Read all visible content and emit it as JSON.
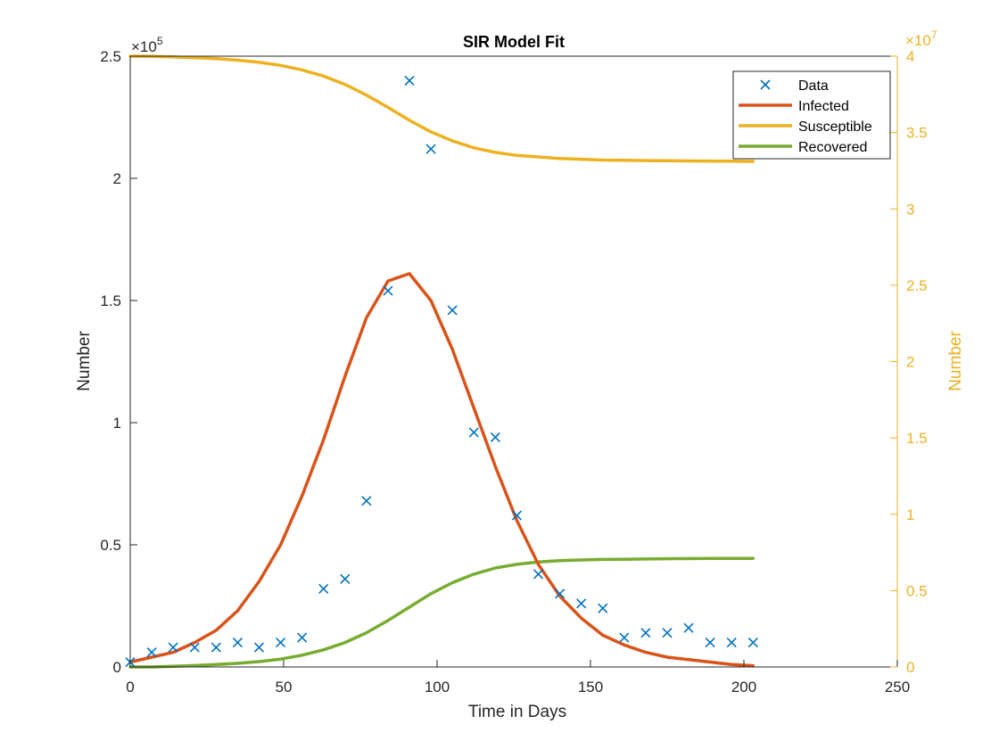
{
  "chart_data": {
    "type": "line",
    "title": "SIR Model Fit",
    "xlabel": "Time in Days",
    "ylabel_left": "Number",
    "ylabel_right": "Number",
    "xlim": [
      0,
      250
    ],
    "ylim_left": [
      0,
      250000
    ],
    "ylim_right": [
      0,
      40000000
    ],
    "x_ticks": [
      "0",
      "50",
      "100",
      "150",
      "200",
      "250"
    ],
    "y_left_ticks": [
      "0",
      "0.5",
      "1",
      "1.5",
      "2",
      "2.5"
    ],
    "y_right_ticks": [
      "0",
      "0.5",
      "1",
      "1.5",
      "2",
      "2.5",
      "3",
      "3.5",
      "4"
    ],
    "y_left_exponent": "×10",
    "y_left_exponent_power": "5",
    "y_right_exponent": "×10",
    "y_right_exponent_power": "7",
    "grid": false,
    "legend_position": "top-right",
    "series": [
      {
        "name": "Data",
        "kind": "markers",
        "axis": "left",
        "color": "#0072BD",
        "x": [
          0,
          7,
          14,
          21,
          28,
          35,
          42,
          49,
          56,
          63,
          70,
          77,
          84,
          91,
          98,
          105,
          112,
          119,
          126,
          133,
          140,
          147,
          154,
          161,
          168,
          175,
          182,
          189,
          196,
          203
        ],
        "y": [
          2000,
          6000,
          8000,
          8000,
          8000,
          10000,
          8000,
          10000,
          12000,
          32000,
          36000,
          68000,
          154000,
          240000,
          212000,
          146000,
          96000,
          94000,
          62000,
          38000,
          30000,
          26000,
          24000,
          12000,
          14000,
          14000,
          16000,
          10000,
          10000,
          10000
        ]
      },
      {
        "name": "Infected",
        "kind": "line",
        "axis": "left",
        "color": "#D95319",
        "x": [
          0,
          7,
          14,
          21,
          28,
          35,
          42,
          49,
          56,
          63,
          70,
          77,
          84,
          91,
          98,
          105,
          112,
          119,
          126,
          133,
          140,
          147,
          154,
          161,
          168,
          175,
          182,
          189,
          196,
          203
        ],
        "y": [
          2000,
          4000,
          6000,
          10000,
          15000,
          23000,
          35000,
          50000,
          70000,
          93000,
          119000,
          143000,
          158000,
          161000,
          150000,
          130000,
          106000,
          82000,
          60000,
          42000,
          29000,
          20000,
          13000,
          9000,
          6000,
          4000,
          3000,
          2000,
          1000,
          500
        ]
      },
      {
        "name": "Susceptible",
        "kind": "line",
        "axis": "right",
        "color": "#EDB120",
        "x": [
          0,
          7,
          14,
          21,
          28,
          35,
          42,
          49,
          56,
          63,
          70,
          77,
          84,
          91,
          98,
          105,
          112,
          119,
          126,
          133,
          140,
          147,
          154,
          161,
          168,
          175,
          182,
          189,
          196,
          203
        ],
        "y": [
          40000000,
          39980000,
          39950000,
          39900000,
          39840000,
          39740000,
          39600000,
          39400000,
          39100000,
          38700000,
          38150000,
          37450000,
          36650000,
          35800000,
          35050000,
          34450000,
          34000000,
          33700000,
          33500000,
          33400000,
          33300000,
          33250000,
          33200000,
          33180000,
          33160000,
          33150000,
          33140000,
          33130000,
          33120000,
          33110000
        ]
      },
      {
        "name": "Recovered",
        "kind": "line",
        "axis": "left",
        "color": "#77AC30",
        "x": [
          0,
          7,
          14,
          21,
          28,
          35,
          42,
          49,
          56,
          63,
          70,
          77,
          84,
          91,
          98,
          105,
          112,
          119,
          126,
          133,
          140,
          147,
          154,
          161,
          168,
          175,
          182,
          189,
          196,
          203
        ],
        "y": [
          0,
          0,
          300,
          600,
          1000,
          1500,
          2200,
          3200,
          4800,
          7000,
          10000,
          14000,
          19000,
          24500,
          30000,
          34500,
          38000,
          40500,
          42000,
          43000,
          43500,
          43800,
          44000,
          44100,
          44200,
          44300,
          44350,
          44400,
          44400,
          44400
        ]
      }
    ]
  }
}
